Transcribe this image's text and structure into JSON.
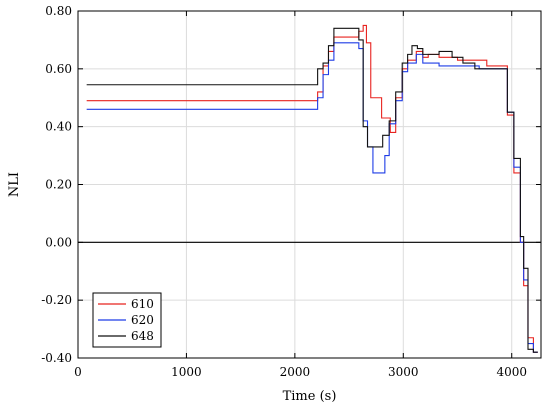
{
  "chart_data": {
    "type": "line",
    "title": "",
    "xlabel": "Time (s)",
    "ylabel": "NLI",
    "xlim": [
      0,
      4270
    ],
    "ylim": [
      -0.4,
      0.8
    ],
    "xticks": [
      0,
      1000,
      2000,
      3000,
      4000
    ],
    "xtick_labels": [
      "0",
      "1000",
      "2000",
      "3000",
      "4000"
    ],
    "yticks": [
      -0.4,
      -0.2,
      0.0,
      0.2,
      0.4,
      0.6,
      0.8
    ],
    "ytick_labels": [
      "-0.40",
      "-0.20",
      "0.00",
      "0.20",
      "0.40",
      "0.60",
      "0.80"
    ],
    "grid": true,
    "reference_line_y": 0.0,
    "legend": {
      "position": "bottom-left",
      "entries": [
        "610",
        "620",
        "648"
      ]
    },
    "series": [
      {
        "name": "610",
        "color": "#e8231f",
        "points": [
          [
            80,
            0.49
          ],
          [
            2210,
            0.49
          ],
          [
            2210,
            0.52
          ],
          [
            2260,
            0.52
          ],
          [
            2260,
            0.61
          ],
          [
            2310,
            0.61
          ],
          [
            2310,
            0.66
          ],
          [
            2360,
            0.66
          ],
          [
            2360,
            0.71
          ],
          [
            2590,
            0.71
          ],
          [
            2590,
            0.73
          ],
          [
            2630,
            0.73
          ],
          [
            2630,
            0.75
          ],
          [
            2660,
            0.75
          ],
          [
            2660,
            0.69
          ],
          [
            2700,
            0.69
          ],
          [
            2700,
            0.5
          ],
          [
            2800,
            0.5
          ],
          [
            2800,
            0.43
          ],
          [
            2880,
            0.43
          ],
          [
            2880,
            0.38
          ],
          [
            2930,
            0.38
          ],
          [
            2930,
            0.5
          ],
          [
            2990,
            0.5
          ],
          [
            2990,
            0.6
          ],
          [
            3040,
            0.6
          ],
          [
            3040,
            0.63
          ],
          [
            3120,
            0.63
          ],
          [
            3120,
            0.66
          ],
          [
            3180,
            0.66
          ],
          [
            3180,
            0.64
          ],
          [
            3230,
            0.64
          ],
          [
            3230,
            0.65
          ],
          [
            3330,
            0.65
          ],
          [
            3330,
            0.64
          ],
          [
            3500,
            0.64
          ],
          [
            3500,
            0.63
          ],
          [
            3770,
            0.63
          ],
          [
            3770,
            0.61
          ],
          [
            3960,
            0.61
          ],
          [
            3960,
            0.44
          ],
          [
            4020,
            0.44
          ],
          [
            4020,
            0.24
          ],
          [
            4080,
            0.24
          ],
          [
            4080,
            0.0
          ],
          [
            4110,
            0.0
          ],
          [
            4110,
            -0.15
          ],
          [
            4150,
            -0.15
          ],
          [
            4150,
            -0.33
          ],
          [
            4200,
            -0.33
          ],
          [
            4200,
            -0.38
          ],
          [
            4240,
            -0.38
          ]
        ]
      },
      {
        "name": "620",
        "color": "#1e3ce6",
        "points": [
          [
            80,
            0.46
          ],
          [
            2210,
            0.46
          ],
          [
            2210,
            0.5
          ],
          [
            2260,
            0.5
          ],
          [
            2260,
            0.58
          ],
          [
            2310,
            0.58
          ],
          [
            2310,
            0.63
          ],
          [
            2360,
            0.63
          ],
          [
            2360,
            0.69
          ],
          [
            2590,
            0.69
          ],
          [
            2590,
            0.67
          ],
          [
            2630,
            0.67
          ],
          [
            2630,
            0.42
          ],
          [
            2670,
            0.42
          ],
          [
            2670,
            0.33
          ],
          [
            2720,
            0.33
          ],
          [
            2720,
            0.24
          ],
          [
            2830,
            0.24
          ],
          [
            2830,
            0.3
          ],
          [
            2870,
            0.3
          ],
          [
            2870,
            0.41
          ],
          [
            2930,
            0.41
          ],
          [
            2930,
            0.49
          ],
          [
            2990,
            0.49
          ],
          [
            2990,
            0.59
          ],
          [
            3040,
            0.59
          ],
          [
            3040,
            0.62
          ],
          [
            3120,
            0.62
          ],
          [
            3120,
            0.65
          ],
          [
            3180,
            0.65
          ],
          [
            3180,
            0.62
          ],
          [
            3330,
            0.62
          ],
          [
            3330,
            0.61
          ],
          [
            3700,
            0.61
          ],
          [
            3700,
            0.6
          ],
          [
            3960,
            0.6
          ],
          [
            3960,
            0.45
          ],
          [
            4020,
            0.45
          ],
          [
            4020,
            0.26
          ],
          [
            4080,
            0.26
          ],
          [
            4080,
            0.0
          ],
          [
            4110,
            0.0
          ],
          [
            4110,
            -0.13
          ],
          [
            4150,
            -0.13
          ],
          [
            4150,
            -0.35
          ],
          [
            4200,
            -0.35
          ],
          [
            4200,
            -0.38
          ],
          [
            4240,
            -0.38
          ]
        ]
      },
      {
        "name": "648",
        "color": "#111111",
        "points": [
          [
            80,
            0.545
          ],
          [
            2210,
            0.545
          ],
          [
            2210,
            0.6
          ],
          [
            2260,
            0.6
          ],
          [
            2260,
            0.62
          ],
          [
            2310,
            0.62
          ],
          [
            2310,
            0.68
          ],
          [
            2360,
            0.68
          ],
          [
            2360,
            0.74
          ],
          [
            2590,
            0.74
          ],
          [
            2590,
            0.7
          ],
          [
            2630,
            0.7
          ],
          [
            2630,
            0.4
          ],
          [
            2670,
            0.4
          ],
          [
            2670,
            0.33
          ],
          [
            2810,
            0.33
          ],
          [
            2810,
            0.37
          ],
          [
            2870,
            0.37
          ],
          [
            2870,
            0.42
          ],
          [
            2930,
            0.42
          ],
          [
            2930,
            0.52
          ],
          [
            2990,
            0.52
          ],
          [
            2990,
            0.62
          ],
          [
            3040,
            0.62
          ],
          [
            3040,
            0.65
          ],
          [
            3080,
            0.65
          ],
          [
            3080,
            0.68
          ],
          [
            3130,
            0.68
          ],
          [
            3130,
            0.67
          ],
          [
            3180,
            0.67
          ],
          [
            3180,
            0.65
          ],
          [
            3330,
            0.65
          ],
          [
            3330,
            0.66
          ],
          [
            3450,
            0.66
          ],
          [
            3450,
            0.64
          ],
          [
            3550,
            0.64
          ],
          [
            3550,
            0.62
          ],
          [
            3660,
            0.62
          ],
          [
            3660,
            0.6
          ],
          [
            3960,
            0.6
          ],
          [
            3960,
            0.45
          ],
          [
            4020,
            0.45
          ],
          [
            4020,
            0.29
          ],
          [
            4080,
            0.29
          ],
          [
            4080,
            0.02
          ],
          [
            4110,
            0.02
          ],
          [
            4110,
            -0.09
          ],
          [
            4150,
            -0.09
          ],
          [
            4150,
            -0.37
          ],
          [
            4200,
            -0.37
          ],
          [
            4200,
            -0.38
          ],
          [
            4240,
            -0.38
          ]
        ]
      }
    ]
  }
}
